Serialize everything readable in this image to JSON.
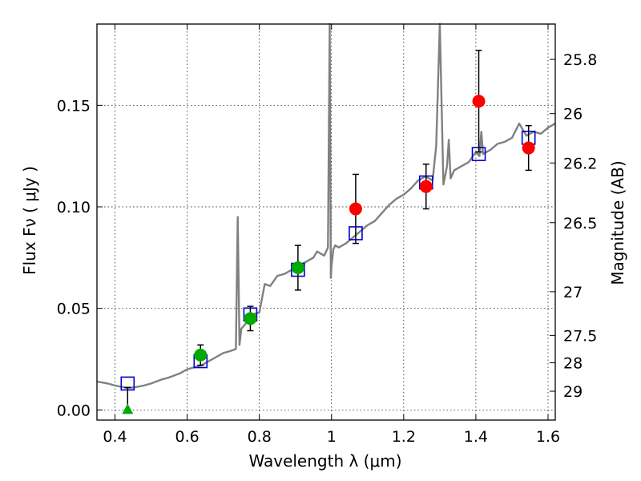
{
  "chart_data": {
    "type": "scatter",
    "xlabel": "Wavelength  λ (μm)",
    "ylabel": "Flux  Fν  ( μJy )",
    "y2label": "Magnitude (AB)",
    "xlim": [
      0.35,
      1.62
    ],
    "ylim": [
      -0.005,
      0.19
    ],
    "grid": true,
    "xticks": [
      0.4,
      0.6,
      0.8,
      1.0,
      1.2,
      1.4,
      1.6
    ],
    "xtick_labels": [
      "0.4",
      "0.6",
      "0.8",
      "1",
      "1.2",
      "1.4",
      "1.6"
    ],
    "yticks": [
      0.0,
      0.05,
      0.1,
      0.15
    ],
    "ytick_labels": [
      "0.00",
      "0.05",
      "0.10",
      "0.15"
    ],
    "y2ticks": [
      {
        "label": "25.8",
        "flux": 0.1726
      },
      {
        "label": "26",
        "flux": 0.1459
      },
      {
        "label": "26.2",
        "flux": 0.1216
      },
      {
        "label": "26.5",
        "flux": 0.0922
      },
      {
        "label": "27",
        "flux": 0.0582
      },
      {
        "label": "27.5",
        "flux": 0.0367
      },
      {
        "label": "28",
        "flux": 0.0232
      },
      {
        "label": "29",
        "flux": 0.0092
      }
    ],
    "colors": {
      "model": "#808080",
      "box": "#0000cc",
      "green": "#00aa00",
      "red": "#ff0000",
      "errorbar": "#000000"
    },
    "series": [
      {
        "kind": "model-spectrum",
        "x": [
          0.35,
          0.38,
          0.4,
          0.43,
          0.45,
          0.48,
          0.5,
          0.53,
          0.55,
          0.58,
          0.6,
          0.62,
          0.64,
          0.66,
          0.68,
          0.7,
          0.72,
          0.735,
          0.74,
          0.745,
          0.75,
          0.76,
          0.78,
          0.8,
          0.815,
          0.83,
          0.85,
          0.87,
          0.89,
          0.91,
          0.93,
          0.95,
          0.96,
          0.97,
          0.98,
          0.99,
          0.995,
          0.998,
          1.0,
          1.005,
          1.01,
          1.02,
          1.04,
          1.06,
          1.08,
          1.1,
          1.12,
          1.14,
          1.16,
          1.18,
          1.2,
          1.22,
          1.24,
          1.26,
          1.28,
          1.29,
          1.3,
          1.31,
          1.32,
          1.325,
          1.33,
          1.34,
          1.36,
          1.38,
          1.4,
          1.41,
          1.415,
          1.42,
          1.44,
          1.46,
          1.48,
          1.5,
          1.52,
          1.54,
          1.56,
          1.58,
          1.6,
          1.62
        ],
        "y": [
          0.014,
          0.013,
          0.012,
          0.011,
          0.011,
          0.012,
          0.013,
          0.015,
          0.016,
          0.018,
          0.02,
          0.021,
          0.022,
          0.024,
          0.026,
          0.028,
          0.029,
          0.03,
          0.095,
          0.032,
          0.04,
          0.042,
          0.047,
          0.048,
          0.062,
          0.061,
          0.066,
          0.067,
          0.069,
          0.071,
          0.073,
          0.075,
          0.078,
          0.077,
          0.076,
          0.08,
          0.205,
          0.065,
          0.071,
          0.079,
          0.081,
          0.08,
          0.082,
          0.085,
          0.088,
          0.091,
          0.093,
          0.097,
          0.101,
          0.104,
          0.106,
          0.109,
          0.113,
          0.115,
          0.113,
          0.13,
          0.205,
          0.111,
          0.12,
          0.133,
          0.114,
          0.118,
          0.12,
          0.122,
          0.127,
          0.125,
          0.137,
          0.126,
          0.128,
          0.131,
          0.132,
          0.134,
          0.141,
          0.135,
          0.137,
          0.136,
          0.139,
          0.141
        ]
      },
      {
        "kind": "model-points",
        "x": [
          0.435,
          0.637,
          0.775,
          0.907,
          1.067,
          1.262,
          1.408,
          1.546
        ],
        "y": [
          0.013,
          0.024,
          0.047,
          0.069,
          0.087,
          0.112,
          0.126,
          0.134
        ]
      },
      {
        "kind": "observed-green",
        "x": [
          0.637,
          0.775,
          0.907
        ],
        "y": [
          0.027,
          0.045,
          0.07
        ],
        "err": [
          0.005,
          0.006,
          0.011
        ]
      },
      {
        "kind": "observed-red",
        "x": [
          1.067,
          1.262,
          1.408,
          1.546
        ],
        "y": [
          0.099,
          0.11,
          0.152,
          0.129
        ],
        "err": [
          0.017,
          0.011,
          0.025,
          0.011
        ]
      },
      {
        "kind": "upper-limit",
        "x": [
          0.435
        ],
        "y": [
          0.0
        ],
        "err_top": [
          0.011
        ]
      }
    ]
  }
}
